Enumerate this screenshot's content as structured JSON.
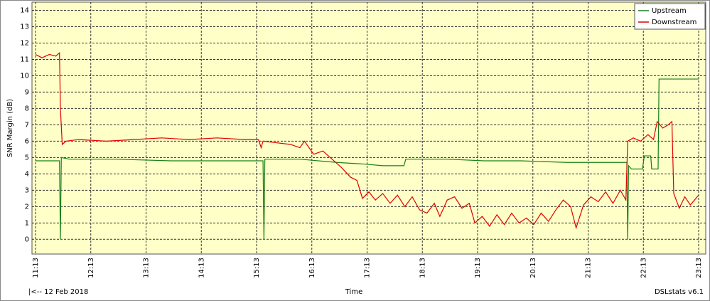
{
  "chart_data": {
    "type": "line",
    "y_label": "SNR Margin (dB)",
    "x_label": "Time",
    "date_label": "|<-- 12 Feb 2018",
    "app_label": "DSLstats v6.1",
    "xlim": [
      673,
      1393
    ],
    "xticks": [
      {
        "value": 673,
        "label": "11:13"
      },
      {
        "value": 733,
        "label": "12:13"
      },
      {
        "value": 793,
        "label": "13:13"
      },
      {
        "value": 853,
        "label": "14:13"
      },
      {
        "value": 913,
        "label": "15:13"
      },
      {
        "value": 973,
        "label": "16:13"
      },
      {
        "value": 1033,
        "label": "17:13"
      },
      {
        "value": 1093,
        "label": "18:13"
      },
      {
        "value": 1153,
        "label": "19:13"
      },
      {
        "value": 1213,
        "label": "20:13"
      },
      {
        "value": 1273,
        "label": "21:13"
      },
      {
        "value": 1333,
        "label": "22:13"
      },
      {
        "value": 1393,
        "label": "23:13"
      }
    ],
    "ylim": [
      -0.9,
      14.5
    ],
    "yticks": [
      0,
      1,
      2,
      3,
      4,
      5,
      6,
      7,
      8,
      9,
      10,
      11,
      12,
      13,
      14
    ],
    "grid": true,
    "legend": "top-right",
    "series": [
      {
        "name": "Upstream",
        "color": "#1a7f1a",
        "x": [
          673,
          699,
          700,
          701,
          710,
          760,
          820,
          880,
          920,
          921,
          922,
          960,
          1000,
          1030,
          1050,
          1073,
          1075,
          1120,
          1160,
          1200,
          1250,
          1300,
          1315,
          1316,
          1317,
          1320,
          1332,
          1334,
          1341,
          1342,
          1349,
          1350,
          1370,
          1393
        ],
        "values": [
          4.8,
          4.8,
          0,
          5.0,
          4.9,
          4.9,
          4.8,
          4.8,
          4.8,
          0,
          4.9,
          4.9,
          4.7,
          4.6,
          4.5,
          4.5,
          4.9,
          4.9,
          4.8,
          4.8,
          4.7,
          4.7,
          4.7,
          0,
          4.5,
          4.3,
          4.3,
          5.1,
          5.1,
          4.3,
          4.3,
          9.8,
          9.8,
          9.8
        ]
      },
      {
        "name": "Downstream",
        "color": "#e00000",
        "x": [
          673,
          680,
          688,
          695,
          699,
          700,
          702,
          706,
          720,
          750,
          780,
          810,
          840,
          870,
          900,
          915,
          918,
          920,
          935,
          950,
          960,
          965,
          975,
          985,
          995,
          1005,
          1015,
          1022,
          1028,
          1035,
          1042,
          1050,
          1058,
          1066,
          1074,
          1082,
          1090,
          1098,
          1106,
          1112,
          1120,
          1128,
          1136,
          1144,
          1150,
          1158,
          1166,
          1174,
          1182,
          1190,
          1198,
          1206,
          1214,
          1222,
          1230,
          1238,
          1246,
          1254,
          1260,
          1268,
          1276,
          1284,
          1292,
          1300,
          1308,
          1314,
          1316,
          1322,
          1330,
          1338,
          1344,
          1348,
          1354,
          1360,
          1364,
          1366,
          1372,
          1378,
          1384,
          1390,
          1393
        ],
        "values": [
          11.3,
          11.1,
          11.3,
          11.2,
          11.4,
          8,
          5.8,
          6.0,
          6.1,
          6.0,
          6.1,
          6.2,
          6.1,
          6.2,
          6.1,
          6.1,
          5.6,
          6.0,
          5.9,
          5.8,
          5.6,
          6.0,
          5.2,
          5.4,
          4.9,
          4.4,
          3.8,
          3.6,
          2.5,
          2.9,
          2.4,
          2.8,
          2.2,
          2.7,
          2.0,
          2.6,
          1.8,
          1.6,
          2.2,
          1.4,
          2.4,
          2.6,
          1.9,
          2.2,
          1.0,
          1.4,
          0.8,
          1.5,
          0.9,
          1.6,
          1.0,
          1.3,
          0.9,
          1.6,
          1.1,
          1.8,
          2.4,
          2.0,
          0.7,
          2.1,
          2.6,
          2.3,
          2.9,
          2.2,
          3.0,
          2.4,
          6.0,
          6.2,
          6.0,
          6.4,
          6.1,
          7.2,
          6.8,
          7.0,
          7.2,
          2.8,
          1.9,
          2.6,
          2.1,
          2.5,
          2.7
        ]
      }
    ]
  }
}
